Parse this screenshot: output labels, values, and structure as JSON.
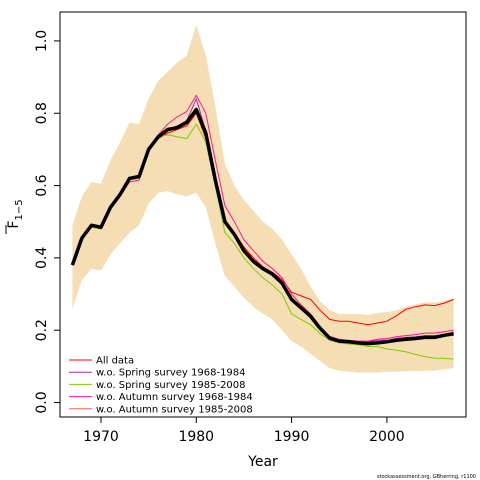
{
  "chart_data": {
    "type": "line",
    "xlabel": "Year",
    "ylabel_main": "F",
    "ylabel_sub": "1−5",
    "xlim": [
      1965.7,
      2008.3
    ],
    "ylim": [
      -0.04,
      1.08
    ],
    "xticks": [
      1970,
      1980,
      1990,
      2000
    ],
    "xtick_labels": [
      "1970",
      "1980",
      "1990",
      "2000"
    ],
    "yticks": [
      0.0,
      0.2,
      0.4,
      0.6,
      0.8,
      1.0
    ],
    "ytick_labels": [
      "0.0",
      "0.2",
      "0.4",
      "0.6",
      "0.8",
      "1.0"
    ],
    "grid": false,
    "legend_position": "bottom-left",
    "footnote": "stockassessment.org, GBherring, r1100",
    "x": [
      1967,
      1968,
      1969,
      1970,
      1971,
      1972,
      1973,
      1974,
      1975,
      1976,
      1977,
      1978,
      1979,
      1980,
      1981,
      1982,
      1983,
      1984,
      1985,
      1986,
      1987,
      1988,
      1989,
      1990,
      1991,
      1992,
      1993,
      1994,
      1995,
      1996,
      1997,
      1998,
      1999,
      2000,
      2001,
      2002,
      2003,
      2004,
      2005,
      2006,
      2007
    ],
    "ci_band": {
      "color": "#F5DEB3",
      "lower": [
        0.26,
        0.34,
        0.37,
        0.365,
        0.41,
        0.44,
        0.47,
        0.49,
        0.55,
        0.58,
        0.585,
        0.575,
        0.57,
        0.58,
        0.54,
        0.44,
        0.35,
        0.32,
        0.29,
        0.265,
        0.245,
        0.23,
        0.2,
        0.17,
        0.155,
        0.135,
        0.115,
        0.095,
        0.088,
        0.085,
        0.083,
        0.083,
        0.083,
        0.085,
        0.085,
        0.087,
        0.087,
        0.088,
        0.088,
        0.092,
        0.095
      ],
      "upper": [
        0.49,
        0.57,
        0.61,
        0.605,
        0.67,
        0.72,
        0.775,
        0.77,
        0.84,
        0.89,
        0.915,
        0.94,
        0.96,
        1.045,
        0.96,
        0.82,
        0.66,
        0.6,
        0.56,
        0.53,
        0.5,
        0.48,
        0.45,
        0.41,
        0.37,
        0.32,
        0.28,
        0.255,
        0.245,
        0.245,
        0.245,
        0.242,
        0.248,
        0.25,
        0.255,
        0.265,
        0.272,
        0.277,
        0.277,
        0.28,
        0.29
      ]
    },
    "series": [
      {
        "name": "All data",
        "color": "#FF0000",
        "width": 1,
        "values": [
          0.38,
          0.455,
          0.49,
          0.485,
          0.54,
          0.575,
          0.62,
          0.625,
          0.7,
          0.73,
          0.745,
          0.755,
          0.765,
          0.8,
          0.73,
          0.61,
          0.5,
          0.47,
          0.43,
          0.4,
          0.375,
          0.36,
          0.34,
          0.305,
          0.295,
          0.285,
          0.255,
          0.23,
          0.225,
          0.225,
          0.22,
          0.215,
          0.22,
          0.225,
          0.24,
          0.258,
          0.265,
          0.27,
          0.268,
          0.275,
          0.285
        ]
      },
      {
        "name": "w.o. Spring survey 1968-1984",
        "color": "#9932CC",
        "width": 1,
        "values": [
          0.38,
          0.455,
          0.49,
          0.485,
          0.54,
          0.575,
          0.62,
          0.625,
          0.7,
          0.73,
          0.755,
          0.765,
          0.78,
          0.84,
          0.75,
          0.62,
          0.5,
          0.465,
          0.42,
          0.39,
          0.37,
          0.355,
          0.33,
          0.285,
          0.265,
          0.24,
          0.205,
          0.178,
          0.17,
          0.168,
          0.168,
          0.168,
          0.172,
          0.172,
          0.178,
          0.18,
          0.182,
          0.185,
          0.185,
          0.188,
          0.195
        ]
      },
      {
        "name": "w.o. Spring survey 1985-2008",
        "color": "#7FCC00",
        "width": 1,
        "values": [
          0.38,
          0.455,
          0.485,
          0.48,
          0.535,
          0.57,
          0.615,
          0.62,
          0.7,
          0.735,
          0.74,
          0.735,
          0.73,
          0.77,
          0.72,
          0.6,
          0.47,
          0.44,
          0.4,
          0.37,
          0.345,
          0.325,
          0.3,
          0.245,
          0.23,
          0.215,
          0.19,
          0.172,
          0.165,
          0.162,
          0.16,
          0.155,
          0.155,
          0.148,
          0.145,
          0.14,
          0.133,
          0.127,
          0.123,
          0.122,
          0.12
        ]
      },
      {
        "name": "w.o. Autumn survey 1968-1984",
        "color": "#FF1493",
        "width": 1,
        "values": [
          0.38,
          0.455,
          0.49,
          0.48,
          0.535,
          0.57,
          0.61,
          0.615,
          0.7,
          0.74,
          0.77,
          0.79,
          0.805,
          0.85,
          0.8,
          0.67,
          0.545,
          0.5,
          0.45,
          0.42,
          0.39,
          0.37,
          0.345,
          0.3,
          0.27,
          0.245,
          0.21,
          0.183,
          0.175,
          0.172,
          0.17,
          0.17,
          0.175,
          0.177,
          0.182,
          0.185,
          0.188,
          0.192,
          0.192,
          0.196,
          0.2
        ]
      },
      {
        "name": "w.o. Autumn survey 1985-2008",
        "color": "#FF6347",
        "width": 1,
        "values": [
          0.38,
          0.455,
          0.49,
          0.485,
          0.54,
          0.575,
          0.62,
          0.625,
          0.7,
          0.73,
          0.75,
          0.76,
          0.77,
          0.81,
          0.74,
          0.61,
          0.5,
          0.465,
          0.425,
          0.395,
          0.37,
          0.355,
          0.33,
          0.29,
          0.265,
          0.24,
          0.205,
          0.178,
          0.17,
          0.168,
          0.165,
          0.165,
          0.168,
          0.17,
          0.175,
          0.178,
          0.18,
          0.182,
          0.182,
          0.186,
          0.19
        ]
      },
      {
        "name": "",
        "color": "#000000",
        "width": 3.5,
        "values": [
          0.38,
          0.455,
          0.49,
          0.485,
          0.54,
          0.575,
          0.62,
          0.625,
          0.7,
          0.735,
          0.755,
          0.76,
          0.775,
          0.81,
          0.745,
          0.615,
          0.5,
          0.465,
          0.42,
          0.39,
          0.37,
          0.355,
          0.33,
          0.285,
          0.262,
          0.238,
          0.205,
          0.178,
          0.17,
          0.168,
          0.165,
          0.163,
          0.165,
          0.168,
          0.172,
          0.175,
          0.177,
          0.18,
          0.18,
          0.186,
          0.19
        ]
      }
    ]
  }
}
